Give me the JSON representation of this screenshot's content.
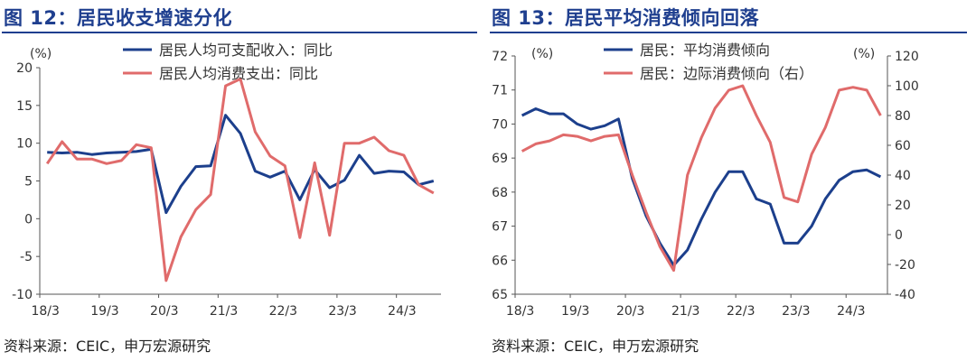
{
  "chart_data": [
    {
      "type": "line",
      "title": "图 12：居民收支增速分化",
      "source": "资料来源：CEIC，申万宏源研究",
      "y_unit": "(%)",
      "ylim": [
        -10,
        20
      ],
      "yticks": [
        20,
        15,
        10,
        5,
        0,
        -5,
        -10
      ],
      "x_tick_labels": [
        "18/3",
        "19/3",
        "20/3",
        "21/3",
        "22/3",
        "23/3",
        "24/3"
      ],
      "legend_position": "top",
      "grid": false,
      "series": [
        {
          "name": "居民人均可支配收入：同比",
          "color": "#1c3f8c",
          "values": [
            8.8,
            8.7,
            8.8,
            8.5,
            8.7,
            8.8,
            8.9,
            9.2,
            0.8,
            4.3,
            6.9,
            7.0,
            13.7,
            11.3,
            6.3,
            5.5,
            6.3,
            2.5,
            6.5,
            4.1,
            5.1,
            8.4,
            6.0,
            6.3,
            6.2,
            4.5,
            5.0
          ]
        },
        {
          "name": "居民人均消费支出：同比",
          "color": "#e06b6b",
          "values": [
            7.3,
            10.2,
            7.9,
            7.9,
            7.3,
            7.7,
            9.8,
            9.4,
            -8.2,
            -2.4,
            1.2,
            3.2,
            17.6,
            18.5,
            11.5,
            8.3,
            7.0,
            -2.5,
            7.4,
            -2.2,
            10.0,
            10.0,
            10.8,
            9.0,
            8.4,
            4.5,
            3.4
          ]
        }
      ]
    },
    {
      "type": "line",
      "title": "图 13：居民平均消费倾向回落",
      "source": "资料来源：CEIC，申万宏源研究",
      "y_unit_left": "(%)",
      "y_unit_right": "(%)",
      "ylim_left": [
        65,
        72
      ],
      "ylim_right": [
        -40,
        120
      ],
      "yticks_left": [
        72,
        71,
        70,
        69,
        68,
        67,
        66,
        65
      ],
      "yticks_right": [
        120,
        100,
        80,
        60,
        40,
        20,
        0,
        -20,
        -40
      ],
      "x_tick_labels": [
        "18/3",
        "19/3",
        "20/3",
        "21/3",
        "22/3",
        "23/3",
        "24/3"
      ],
      "legend_position": "top",
      "grid": false,
      "series": [
        {
          "name": "居民：平均消费倾向",
          "axis": "left",
          "color": "#1c3f8c",
          "values": [
            70.25,
            70.45,
            70.3,
            70.3,
            70.0,
            69.85,
            69.95,
            70.15,
            68.4,
            67.3,
            66.5,
            65.85,
            66.3,
            67.2,
            68.0,
            68.6,
            68.6,
            67.8,
            67.65,
            66.5,
            66.5,
            67.0,
            67.8,
            68.35,
            68.6,
            68.65,
            68.45
          ]
        },
        {
          "name": "居民：边际消费倾向（右）",
          "axis": "right",
          "color": "#e06b6b",
          "values": [
            56,
            61,
            63,
            67,
            66,
            63,
            66,
            67,
            40,
            15,
            -8,
            -24,
            40,
            65,
            85,
            97,
            100,
            80,
            62,
            25,
            22,
            54,
            72,
            97,
            99,
            97,
            80
          ]
        }
      ]
    }
  ]
}
